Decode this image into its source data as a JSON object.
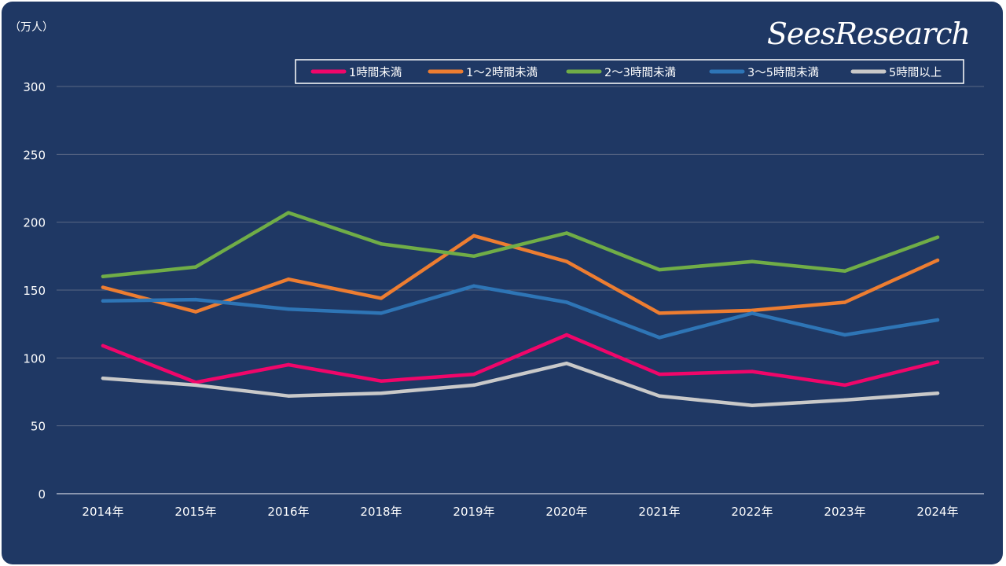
{
  "brand": {
    "logo_text": "SeesResearch"
  },
  "chart_data": {
    "type": "line",
    "title": "",
    "xlabel": "",
    "ylabel": "（万人）",
    "ylim": [
      0,
      300
    ],
    "yticks": [
      0,
      50,
      100,
      150,
      200,
      250,
      300
    ],
    "grid": true,
    "legend_position": "top-right",
    "categories": [
      "2014年",
      "2015年",
      "2016年",
      "2018年",
      "2019年",
      "2020年",
      "2021年",
      "2022年",
      "2023年",
      "2024年"
    ],
    "series": [
      {
        "name": "1時間未満",
        "color": "#f0066a",
        "values": [
          109,
          82,
          95,
          83,
          88,
          117,
          88,
          90,
          80,
          97
        ]
      },
      {
        "name": "1～2時間未満",
        "color": "#ed7d31",
        "values": [
          152,
          134,
          158,
          144,
          190,
          171,
          133,
          135,
          141,
          172
        ]
      },
      {
        "name": "2～3時間未満",
        "color": "#70ad47",
        "values": [
          160,
          167,
          207,
          184,
          175,
          192,
          165,
          171,
          164,
          189
        ]
      },
      {
        "name": "3～5時間未満",
        "color": "#2e75b6",
        "values": [
          142,
          143,
          136,
          133,
          153,
          141,
          115,
          133,
          117,
          128
        ]
      },
      {
        "name": "5時間以上",
        "color": "#c9c9c9",
        "values": [
          85,
          80,
          72,
          74,
          80,
          96,
          72,
          65,
          69,
          74
        ]
      }
    ]
  }
}
